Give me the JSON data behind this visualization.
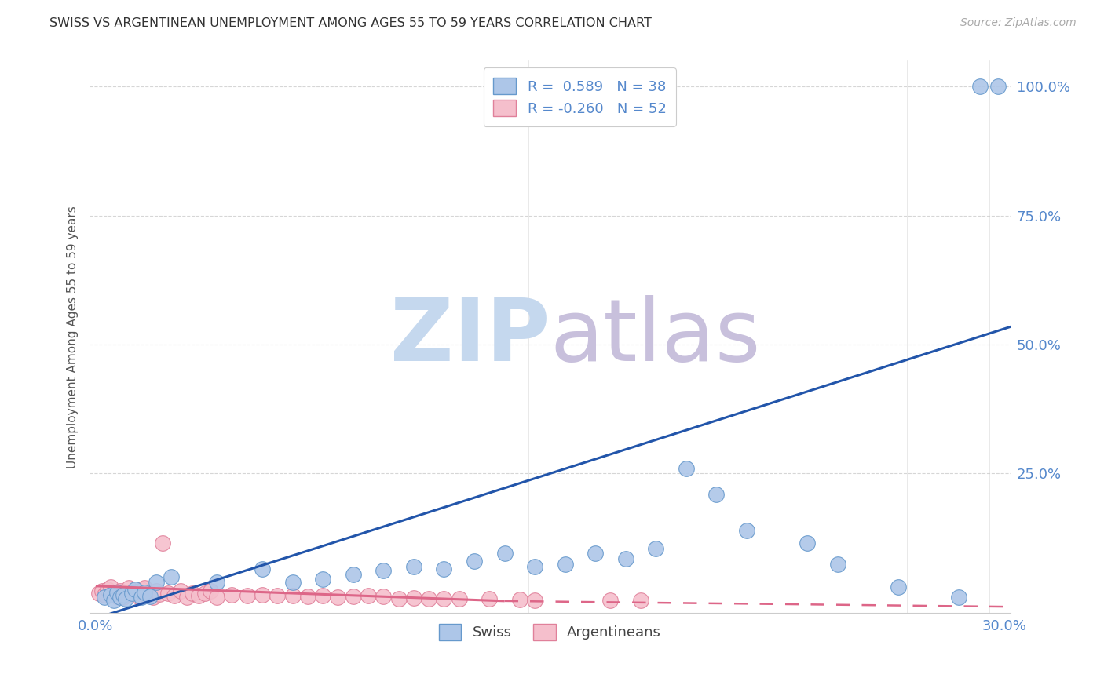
{
  "title": "SWISS VS ARGENTINEAN UNEMPLOYMENT AMONG AGES 55 TO 59 YEARS CORRELATION CHART",
  "source": "Source: ZipAtlas.com",
  "ylabel": "Unemployment Among Ages 55 to 59 years",
  "swiss_color": "#adc6e8",
  "swiss_edge_color": "#6699cc",
  "arg_color": "#f5bfcc",
  "arg_edge_color": "#e0809a",
  "tick_color": "#5588cc",
  "grid_color": "#cccccc",
  "title_color": "#333333",
  "axis_label_color": "#555555",
  "watermark_zip_color": "#c5d8ee",
  "watermark_atlas_color": "#c8c0dc",
  "swiss_line_color": "#2255aa",
  "arg_line_color": "#dd6688",
  "background_color": "#ffffff",
  "legend_label_swiss": "R =  0.589   N = 38",
  "legend_label_arg": "R = -0.260   N = 52",
  "bottom_legend_swiss": "Swiss",
  "bottom_legend_arg": "Argentineans",
  "xlim": [
    0.0,
    0.3
  ],
  "ylim": [
    -0.02,
    1.05
  ],
  "ytick_positions": [
    0.0,
    0.25,
    0.5,
    0.75,
    1.0
  ],
  "ytick_labels": [
    "",
    "25.0%",
    "50.0%",
    "75.0%",
    "100.0%"
  ],
  "xtick_positions": [
    0.0,
    0.3
  ],
  "xtick_labels": [
    "0.0%",
    "30.0%"
  ],
  "swiss_scatter_x": [
    0.003,
    0.005,
    0.006,
    0.007,
    0.008,
    0.009,
    0.01,
    0.012,
    0.013,
    0.015,
    0.016,
    0.018,
    0.02,
    0.025,
    0.04,
    0.055,
    0.065,
    0.075,
    0.085,
    0.095,
    0.105,
    0.115,
    0.125,
    0.135,
    0.145,
    0.155,
    0.165,
    0.175,
    0.185,
    0.195,
    0.205,
    0.215,
    0.235,
    0.245,
    0.265,
    0.285,
    0.292,
    0.298
  ],
  "swiss_scatter_y": [
    0.01,
    0.015,
    0.005,
    0.02,
    0.01,
    0.015,
    0.008,
    0.018,
    0.025,
    0.01,
    0.02,
    0.012,
    0.04,
    0.05,
    0.04,
    0.065,
    0.04,
    0.045,
    0.055,
    0.062,
    0.07,
    0.065,
    0.08,
    0.095,
    0.07,
    0.075,
    0.095,
    0.085,
    0.105,
    0.26,
    0.21,
    0.14,
    0.115,
    0.075,
    0.03,
    0.01,
    1.0,
    1.0
  ],
  "arg_scatter_x": [
    0.001,
    0.002,
    0.003,
    0.004,
    0.005,
    0.006,
    0.007,
    0.008,
    0.009,
    0.01,
    0.011,
    0.012,
    0.013,
    0.014,
    0.015,
    0.016,
    0.017,
    0.018,
    0.019,
    0.02,
    0.021,
    0.022,
    0.024,
    0.026,
    0.028,
    0.03,
    0.032,
    0.034,
    0.036,
    0.038,
    0.04,
    0.045,
    0.05,
    0.055,
    0.06,
    0.065,
    0.07,
    0.075,
    0.08,
    0.085,
    0.09,
    0.095,
    0.1,
    0.105,
    0.11,
    0.115,
    0.12,
    0.13,
    0.14,
    0.145,
    0.17,
    0.18
  ],
  "arg_scatter_y": [
    0.018,
    0.022,
    0.015,
    0.025,
    0.03,
    0.018,
    0.012,
    0.022,
    0.01,
    0.02,
    0.028,
    0.015,
    0.02,
    0.012,
    0.025,
    0.028,
    0.014,
    0.02,
    0.01,
    0.022,
    0.016,
    0.115,
    0.018,
    0.014,
    0.022,
    0.01,
    0.018,
    0.014,
    0.018,
    0.022,
    0.01,
    0.015,
    0.013,
    0.015,
    0.013,
    0.014,
    0.012,
    0.014,
    0.01,
    0.012,
    0.013,
    0.012,
    0.008,
    0.009,
    0.007,
    0.008,
    0.008,
    0.007,
    0.006,
    0.005,
    0.005,
    0.005
  ],
  "swiss_trend_x0": -0.005,
  "swiss_trend_x1": 0.305,
  "swiss_trend_y0": -0.04,
  "swiss_trend_y1": 0.54,
  "arg_trend_solid_x0": 0.0,
  "arg_trend_solid_x1": 0.135,
  "arg_trend_y0": 0.032,
  "arg_trend_y1": 0.003,
  "arg_trend_dashed_x0": 0.135,
  "arg_trend_dashed_x1": 0.3,
  "arg_trend_dashed_y0": 0.003,
  "arg_trend_dashed_y1": -0.008,
  "vline_positions": [
    0.143,
    0.232,
    0.268,
    0.295
  ]
}
